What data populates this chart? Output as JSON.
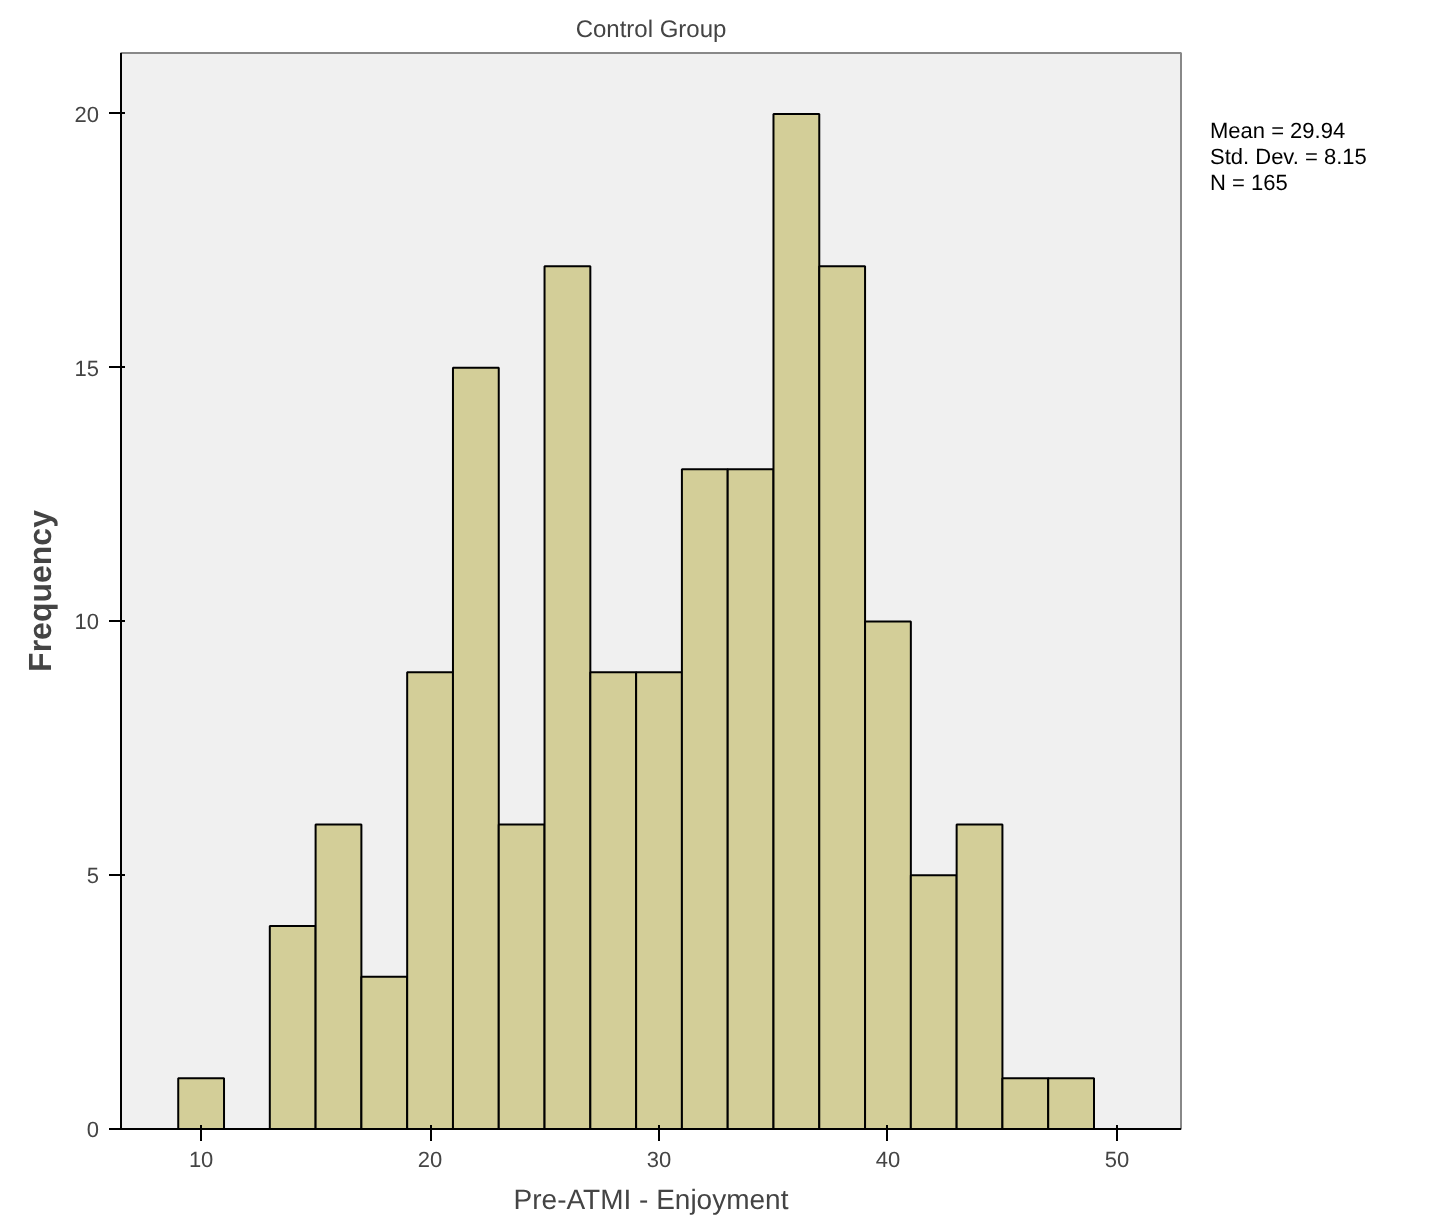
{
  "chart_data": {
    "type": "histogram",
    "title": "Control Group",
    "xlabel": "Pre-ATMI - Enjoyment",
    "ylabel": "Frequency",
    "bins": [
      9,
      11,
      13,
      15,
      17,
      19,
      21,
      23,
      25,
      27,
      29,
      31,
      33,
      35,
      37,
      39,
      41,
      43,
      45,
      47,
      49
    ],
    "values": [
      1,
      0,
      4,
      6,
      3,
      9,
      15,
      6,
      17,
      9,
      9,
      13,
      13,
      20,
      17,
      10,
      5,
      6,
      1,
      1
    ],
    "color": "#d3ce98",
    "xlim": [
      6.5,
      52.8
    ],
    "xticks": [
      10,
      20,
      30,
      40,
      50
    ],
    "ylim": [
      0,
      21.2
    ],
    "yticks": [
      0,
      5,
      10,
      15,
      20
    ],
    "grid": false,
    "annotations": [
      "Mean = 29.94",
      "Std. Dev. = 8.15",
      "N = 165"
    ]
  }
}
